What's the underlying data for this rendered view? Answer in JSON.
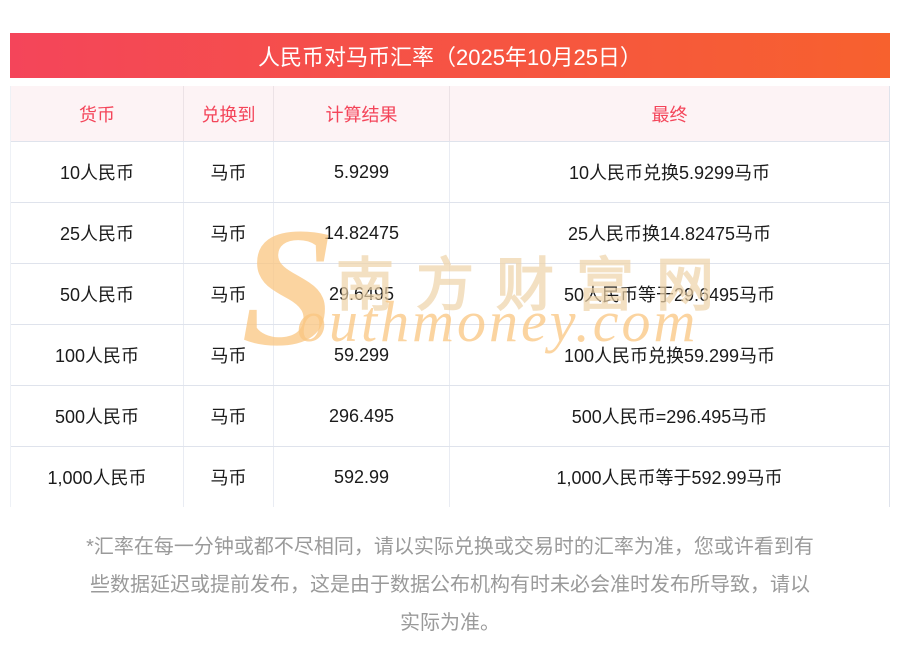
{
  "header": {
    "title": "人民币对马币汇率（2025年10月25日）"
  },
  "table": {
    "columns": [
      {
        "label": "货币"
      },
      {
        "label": "兑换到"
      },
      {
        "label": "计算结果"
      },
      {
        "label": "最终"
      }
    ],
    "rows": [
      {
        "currency": "10人民币",
        "to": "马币",
        "result": "5.9299",
        "final": "10人民币兑换5.9299马币"
      },
      {
        "currency": "25人民币",
        "to": "马币",
        "result": "14.82475",
        "final": "25人民币换14.82475马币"
      },
      {
        "currency": "50人民币",
        "to": "马币",
        "result": "29.6495",
        "final": "50人民币等于29.6495马币"
      },
      {
        "currency": "100人民币",
        "to": "马币",
        "result": "59.299",
        "final": "100人民币兑换59.299马币"
      },
      {
        "currency": "500人民币",
        "to": "马币",
        "result": "296.495",
        "final": "500人民币=296.495马币"
      },
      {
        "currency": "1,000人民币",
        "to": "马币",
        "result": "592.99",
        "final": "1,000人民币等于592.99马币"
      }
    ]
  },
  "watermark": {
    "initial": "S",
    "cn": "南方财富网",
    "en": "outhmoney.com"
  },
  "disclaimer": {
    "lines": [
      "*汇率在每一分钟或都不尽相同，请以实际兑换或交易时的汇率为准，您或许看到有",
      "些数据延迟或提前发布，这是由于数据公布机构有时未必会准时发布所导致，请以",
      "实际为准。"
    ]
  },
  "colors": {
    "gradient_left": "#f4455a",
    "gradient_right": "#f7612e",
    "title_text": "#ffffff",
    "colhead_bg": "#fdf3f5",
    "colhead_text": "#f4455a",
    "border": "#dfe3ec",
    "cell_text": "#1b1b1b",
    "disclaimer_text": "#9a9a9a"
  }
}
